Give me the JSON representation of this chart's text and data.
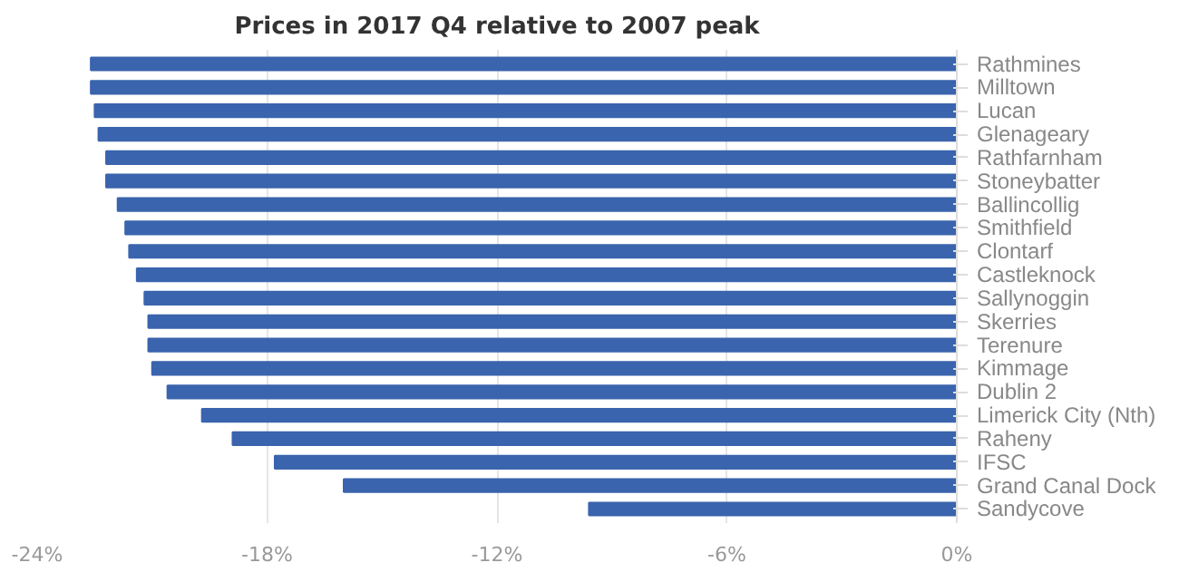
{
  "chart_data": {
    "type": "bar",
    "orientation": "horizontal",
    "title": "Prices in 2017 Q4 relative to 2007 peak",
    "categories": [
      "Rathmines",
      "Milltown",
      "Lucan",
      "Glenageary",
      "Rathfarnham",
      "Stoneybatter",
      "Ballincollig",
      "Smithfield",
      "Clontarf",
      "Castleknock",
      "Sallynoggin",
      "Skerries",
      "Terenure",
      "Kimmage",
      "Dublin 2",
      "Limerick City (Nth)",
      "Raheny",
      "IFSC",
      "Grand Canal Dock",
      "Sandycove"
    ],
    "values": [
      -22.6,
      -22.6,
      -22.5,
      -22.4,
      -22.2,
      -22.2,
      -21.9,
      -21.7,
      -21.6,
      -21.4,
      -21.2,
      -21.1,
      -21.1,
      -21.0,
      -20.6,
      -19.7,
      -18.9,
      -17.8,
      -16.0,
      -9.6
    ],
    "color": "#3a64ad",
    "xlim": [
      -24,
      0
    ],
    "xticks": [
      {
        "value": -24,
        "label": "-24%"
      },
      {
        "value": -18,
        "label": "-18%"
      },
      {
        "value": -12,
        "label": "-12%"
      },
      {
        "value": -6,
        "label": "-6%"
      },
      {
        "value": 0,
        "label": "0%"
      }
    ],
    "grid": "x"
  }
}
